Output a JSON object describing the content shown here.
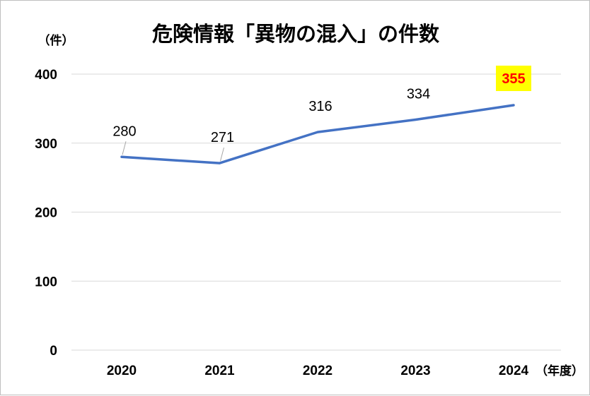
{
  "chart_data": {
    "type": "line",
    "title": "危険情報「異物の混入」の件数",
    "ylabel": "（件）",
    "xlabel": "（年度）",
    "categories": [
      "2020",
      "2021",
      "2022",
      "2023",
      "2024"
    ],
    "values": [
      280,
      271,
      316,
      334,
      355
    ],
    "ylim": [
      0,
      400
    ],
    "yticks": [
      "0",
      "100",
      "200",
      "300",
      "400"
    ],
    "data_labels": [
      "280",
      "271",
      "316",
      "334",
      "355"
    ],
    "highlight_index": 4,
    "highlight_fill": "#ffff00",
    "highlight_text_color": "#ff0000",
    "series_color": "#4472c4",
    "grid": true,
    "legend": "none"
  }
}
